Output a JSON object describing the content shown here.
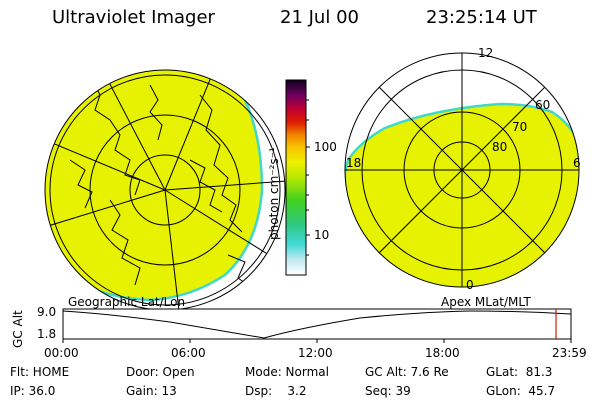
{
  "header": {
    "instrument": "Ultraviolet Imager",
    "date": "21 Jul 00",
    "time": "23:25:14 UT"
  },
  "colorbar": {
    "label": "photon cm⁻²s⁻¹",
    "ticks": [
      "100",
      "10"
    ]
  },
  "polar_plot": {
    "mlt_labels": [
      "12",
      "18",
      "6",
      "0"
    ],
    "mlat_labels": [
      "60",
      "70",
      "80"
    ]
  },
  "maps": {
    "left_caption": "Geographic Lat/Lon",
    "right_caption": "Apex MLat/MLT"
  },
  "altitude_plot": {
    "ylabel": "GC Alt",
    "yticks": [
      "9.0",
      "1.8"
    ],
    "xticks": [
      "00:00",
      "06:00",
      "12:00",
      "18:00",
      "23:59"
    ]
  },
  "status": {
    "flt": "Flt: HOME",
    "ip": "IP: 36.0",
    "door": "Door: Open",
    "gain": "Gain: 13",
    "mode": "Mode: Normal",
    "dsp": "Dsp:    3.2",
    "gc_alt": "GC Alt: 7.6 Re",
    "seq": "Seq: 39",
    "glat": "GLat:  81.3",
    "glon": "GLon:  45.7"
  },
  "colors": {
    "aurora_fill": "#e6f200",
    "aurora_edge": "#40d8c8",
    "marker": "#cc2200"
  }
}
